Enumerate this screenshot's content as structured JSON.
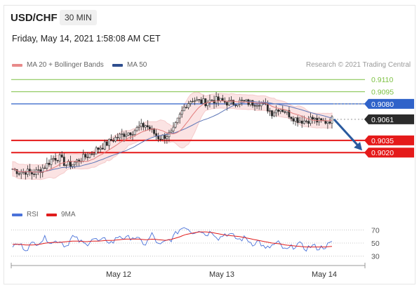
{
  "header": {
    "pair": "USD/CHF",
    "timeframe": "30 MIN",
    "datetime": "Friday, May 14, 2021 1:58:08 AM CET"
  },
  "legend": {
    "ma20_label": "MA 20 + Bollinger Bands",
    "ma50_label": "MA 50",
    "credit": "Research © 2021 Trading Central",
    "rsi_label": "RSI",
    "ma9_label": "9MA"
  },
  "colors": {
    "candle": "#2b2b2b",
    "ma20": "#e27b7b",
    "bollinger_fill": "#fbe0e0",
    "ma50": "#5f78b8",
    "resistance_green": "#7dc143",
    "pivot_blue": "#2f62c9",
    "support_red": "#e51a1a",
    "current_price": "#2b2b2b",
    "arrow": "#2a5a9e",
    "rsi": "#4a72d9",
    "rsi_ma9": "#e01c1c"
  },
  "chart_data": {
    "type": "candlestick",
    "symbol": "USD/CHF",
    "timeframe": "30 MIN",
    "y_range": [
      0.897,
      0.9118
    ],
    "x_ticks": [
      "May 12",
      "May 13",
      "May 14"
    ],
    "levels": [
      {
        "value": 0.911,
        "label": "0.9110",
        "kind": "resistance"
      },
      {
        "value": 0.9095,
        "label": "0.9095",
        "kind": "resistance"
      },
      {
        "value": 0.908,
        "label": "0.9080",
        "kind": "pivot"
      },
      {
        "value": 0.9061,
        "label": "0.9061",
        "kind": "current_price"
      },
      {
        "value": 0.9035,
        "label": "0.9035",
        "kind": "support"
      },
      {
        "value": 0.902,
        "label": "0.9020",
        "kind": "support"
      }
    ],
    "close_path": [
      0.9,
      0.8996,
      0.8997,
      0.8994,
      0.8998,
      0.9004,
      0.9013,
      0.9014,
      0.9005,
      0.9006,
      0.9011,
      0.9015,
      0.902,
      0.9026,
      0.903,
      0.9036,
      0.904,
      0.9044,
      0.9046,
      0.9051,
      0.9054,
      0.9046,
      0.9038,
      0.9041,
      0.9044,
      0.9063,
      0.9079,
      0.9086,
      0.9083,
      0.9082,
      0.9085,
      0.9084,
      0.9082,
      0.9081,
      0.9083,
      0.9082,
      0.9081,
      0.9082,
      0.9077,
      0.9069,
      0.9075,
      0.9071,
      0.9064,
      0.906,
      0.9059,
      0.9062,
      0.9058,
      0.9058,
      0.9061
    ],
    "forecast_arrow": {
      "from": 0.9061,
      "to": 0.902
    },
    "rsi": {
      "levels": [
        70,
        50,
        30
      ],
      "range": [
        20,
        80
      ],
      "rsi_path": [
        46,
        48,
        41,
        49,
        52,
        58,
        50,
        55,
        45,
        60,
        53,
        47,
        58,
        52,
        55,
        50,
        62,
        56,
        60,
        54,
        48,
        64,
        45,
        52,
        57,
        70,
        76,
        66,
        71,
        63,
        68,
        57,
        65,
        61,
        55,
        58,
        49,
        53,
        40,
        46,
        50,
        38,
        44,
        49,
        41,
        46,
        42,
        45,
        50
      ],
      "ma9_path": [
        48,
        48,
        47,
        47,
        48,
        50,
        51,
        51,
        52,
        53,
        53,
        52,
        53,
        53,
        54,
        54,
        55,
        56,
        56,
        56,
        55,
        56,
        55,
        54,
        56,
        59,
        63,
        65,
        67,
        67,
        66,
        64,
        62,
        61,
        60,
        58,
        56,
        54,
        52,
        50,
        49,
        47,
        46,
        45,
        44,
        44,
        44,
        44,
        45
      ]
    }
  }
}
